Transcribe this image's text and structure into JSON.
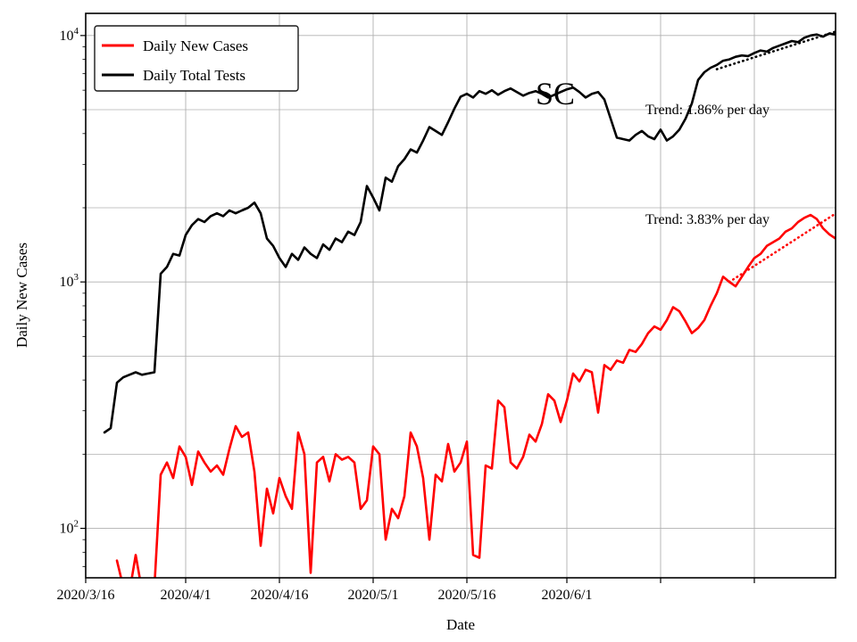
{
  "figure": {
    "title": "SC",
    "xlabel": "Date",
    "ylabel": "Daily New Cases",
    "background": "#ffffff",
    "grid_color": "#b0b0b0",
    "spine_color": "#000000"
  },
  "legend": {
    "items": [
      {
        "label": "Daily New Cases",
        "color": "#ff0000"
      },
      {
        "label": "Daily Total Tests",
        "color": "#000000"
      }
    ]
  },
  "annotations": [
    {
      "text": "Trend: 1.86% per day",
      "series": "Daily Total Tests"
    },
    {
      "text": "Trend: 3.83% per day",
      "series": "Daily New Cases"
    }
  ],
  "chart_data": {
    "type": "line",
    "title": "SC",
    "xlabel": "Date",
    "ylabel": "Daily New Cases",
    "y_scale": "log",
    "ylim": [
      63,
      12300
    ],
    "xlim_days": [
      0,
      120
    ],
    "x_start_date": "2020/3/16",
    "x_unit": "days since 2020/3/16 (array index = day)",
    "x_ticks": [
      {
        "day": 0,
        "label": "2020/3/16"
      },
      {
        "day": 16,
        "label": "2020/4/1"
      },
      {
        "day": 31,
        "label": "2020/4/16"
      },
      {
        "day": 46,
        "label": "2020/5/1"
      },
      {
        "day": 61,
        "label": "2020/5/16"
      },
      {
        "day": 77,
        "label": "2020/6/1"
      }
    ],
    "extra_grid_days": [
      92,
      107
    ],
    "y_major_ticks": [
      100,
      1000,
      10000
    ],
    "y_minor_grid": [
      200,
      500,
      2000,
      5000
    ],
    "y_minor_ticks": [
      70,
      80,
      90,
      200,
      300,
      400,
      500,
      600,
      700,
      800,
      900,
      2000,
      3000,
      4000,
      5000,
      6000,
      7000,
      8000,
      9000
    ],
    "grid": true,
    "legend_position": "upper left",
    "series": [
      {
        "name": "Daily New Cases",
        "color": "#ff0000",
        "style": "solid",
        "width": 2.6,
        "values": [
          null,
          null,
          null,
          null,
          null,
          74,
          58,
          55,
          78,
          56,
          54,
          58,
          165,
          185,
          160,
          215,
          195,
          150,
          205,
          185,
          170,
          180,
          165,
          210,
          260,
          235,
          245,
          170,
          85,
          145,
          115,
          160,
          135,
          120,
          245,
          200,
          66,
          185,
          195,
          155,
          200,
          190,
          195,
          185,
          120,
          130,
          215,
          200,
          90,
          120,
          110,
          135,
          245,
          215,
          160,
          90,
          165,
          155,
          220,
          170,
          185,
          225,
          78,
          76,
          180,
          175,
          330,
          310,
          185,
          175,
          195,
          240,
          225,
          265,
          350,
          330,
          270,
          330,
          425,
          395,
          440,
          430,
          295,
          460,
          440,
          480,
          470,
          530,
          520,
          560,
          620,
          660,
          640,
          700,
          790,
          760,
          690,
          620,
          650,
          700,
          800,
          900,
          1050,
          1000,
          960,
          1050,
          1150,
          1250,
          1300,
          1400,
          1450,
          1500,
          1600,
          1650,
          1750,
          1820,
          1870,
          1800,
          1650,
          1560,
          1500
        ]
      },
      {
        "name": "Daily Total Tests",
        "color": "#000000",
        "style": "solid",
        "width": 2.6,
        "values": [
          null,
          null,
          null,
          245,
          255,
          390,
          410,
          420,
          430,
          420,
          425,
          430,
          1080,
          1150,
          1300,
          1280,
          1550,
          1700,
          1800,
          1750,
          1850,
          1900,
          1850,
          1950,
          1900,
          1950,
          2000,
          2100,
          1900,
          1500,
          1400,
          1250,
          1150,
          1300,
          1230,
          1380,
          1300,
          1250,
          1420,
          1350,
          1500,
          1450,
          1600,
          1550,
          1750,
          2450,
          2200,
          1950,
          2650,
          2550,
          2950,
          3150,
          3450,
          3350,
          3750,
          4250,
          4100,
          3950,
          4450,
          5050,
          5650,
          5800,
          5600,
          5950,
          5800,
          6000,
          5750,
          5950,
          6100,
          5900,
          5700,
          5850,
          5950,
          5800,
          5600,
          5750,
          5900,
          6050,
          6150,
          5900,
          5600,
          5800,
          5900,
          5500,
          4600,
          3850,
          3800,
          3750,
          3950,
          4100,
          3900,
          3800,
          4150,
          3750,
          3900,
          4150,
          4600,
          5300,
          6600,
          7100,
          7400,
          7600,
          7900,
          8000,
          8200,
          8300,
          8250,
          8500,
          8700,
          8600,
          8900,
          9100,
          9300,
          9500,
          9400,
          9800,
          10000,
          10100,
          9900,
          10200,
          10100
        ]
      },
      {
        "name": "Trend of Daily New Cases (3.83% per day)",
        "color": "#ff0000",
        "style": "dotted",
        "width": 2.6,
        "points": [
          [
            103,
            1000
          ],
          [
            120,
            1894
          ]
        ]
      },
      {
        "name": "Trend of Daily Total Tests (1.86% per day)",
        "color": "#000000",
        "style": "dotted",
        "width": 2.6,
        "points": [
          [
            101,
            7300
          ],
          [
            120,
            10370
          ]
        ]
      }
    ],
    "trends": [
      {
        "series": "Daily Total Tests",
        "rate_per_day_percent": 1.86
      },
      {
        "series": "Daily New Cases",
        "rate_per_day_percent": 3.83
      }
    ]
  }
}
